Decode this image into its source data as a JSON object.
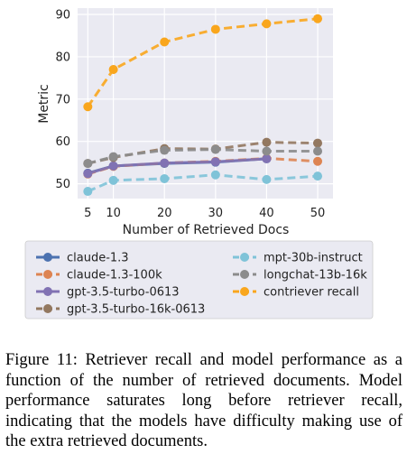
{
  "chart_data": {
    "type": "line",
    "xlabel": "Number of Retrieved Docs",
    "ylabel": "Metric",
    "x": [
      5,
      10,
      20,
      30,
      40,
      50
    ],
    "xticks": [
      5,
      10,
      20,
      30,
      40,
      50
    ],
    "yticks": [
      50,
      60,
      70,
      80,
      90
    ],
    "xlim": [
      3,
      53
    ],
    "ylim": [
      46.5,
      91.5
    ],
    "grid": true,
    "legend_position": "bottom",
    "series": [
      {
        "name": "claude-1.3",
        "color": "#4c72b0",
        "dashed": false,
        "values": [
          52.5,
          54.2,
          54.8,
          55.1,
          55.9,
          null
        ]
      },
      {
        "name": "claude-1.3-100k",
        "color": "#dd8452",
        "dashed": true,
        "values": [
          52.3,
          54.1,
          54.9,
          55.3,
          56.0,
          55.3
        ]
      },
      {
        "name": "gpt-3.5-turbo-0613",
        "color": "#8172b3",
        "dashed": false,
        "values": [
          52.4,
          54.2,
          54.9,
          55.2,
          55.9,
          null
        ]
      },
      {
        "name": "gpt-3.5-turbo-16k-0613",
        "color": "#937860",
        "dashed": true,
        "values": [
          54.8,
          56.2,
          58.3,
          58.2,
          59.8,
          59.6
        ]
      },
      {
        "name": "mpt-30b-instruct",
        "color": "#7fc3d8",
        "dashed": true,
        "values": [
          48.2,
          50.8,
          51.2,
          52.1,
          51.0,
          51.8
        ]
      },
      {
        "name": "longchat-13b-16k",
        "color": "#8c8c8c",
        "dashed": true,
        "values": [
          54.8,
          56.4,
          57.9,
          58.1,
          57.7,
          57.7
        ]
      },
      {
        "name": "contriever recall",
        "color": "#f9a61d",
        "dashed": true,
        "values": [
          68.2,
          77.0,
          83.5,
          86.5,
          87.8,
          89.0
        ]
      }
    ]
  },
  "caption": "Figure 11: Retriever recall and model performance as a function of the number of retrieved documents. Model performance saturates long before retriever recall, indicating that the models have difficulty making use of the extra retrieved documents."
}
